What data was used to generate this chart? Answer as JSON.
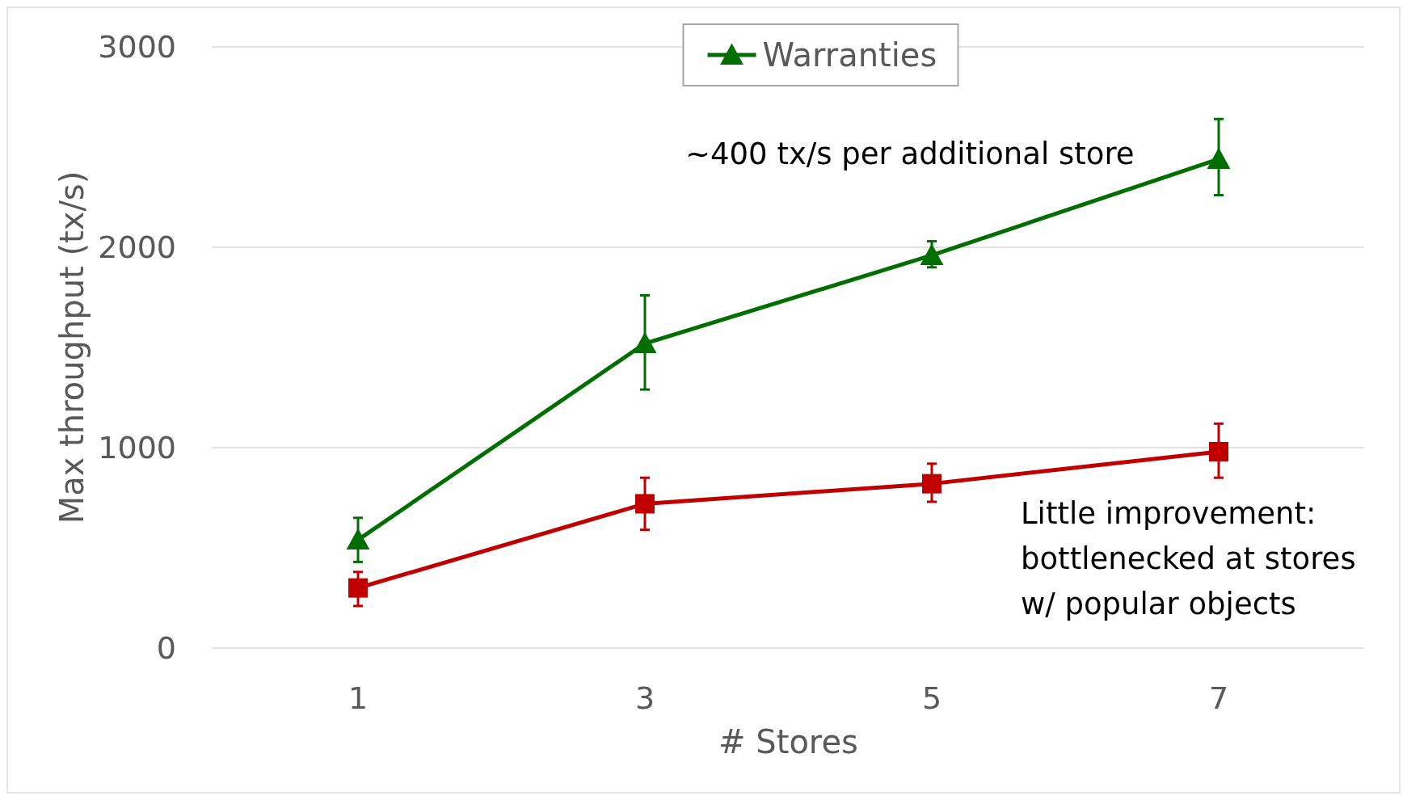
{
  "chart_data": {
    "type": "line",
    "xlabel": "# Stores",
    "ylabel": "Max throughput (tx/s)",
    "categories": [
      "1",
      "3",
      "5",
      "7"
    ],
    "series": [
      {
        "color": "#c00000",
        "marker": "square",
        "values": [
          300,
          720,
          820,
          980
        ],
        "errors": [
          [
            210,
            380
          ],
          [
            590,
            850
          ],
          [
            730,
            920
          ],
          [
            850,
            1120
          ]
        ]
      },
      {
        "name": "Warranties",
        "color": "#006e00",
        "marker": "triangle",
        "values": [
          540,
          1520,
          1960,
          2440
        ],
        "errors": [
          [
            430,
            650
          ],
          [
            1290,
            1760
          ],
          [
            1900,
            2030
          ],
          [
            2260,
            2640
          ]
        ]
      }
    ],
    "ylim": [
      0,
      3000
    ],
    "yticks": [
      0,
      1000,
      2000,
      3000
    ],
    "grid": "y",
    "legend": "top",
    "annotations": [
      "~400 tx/s per additional store",
      "Little improvement:\nbottlenecked at stores\nw/ popular objects"
    ]
  }
}
